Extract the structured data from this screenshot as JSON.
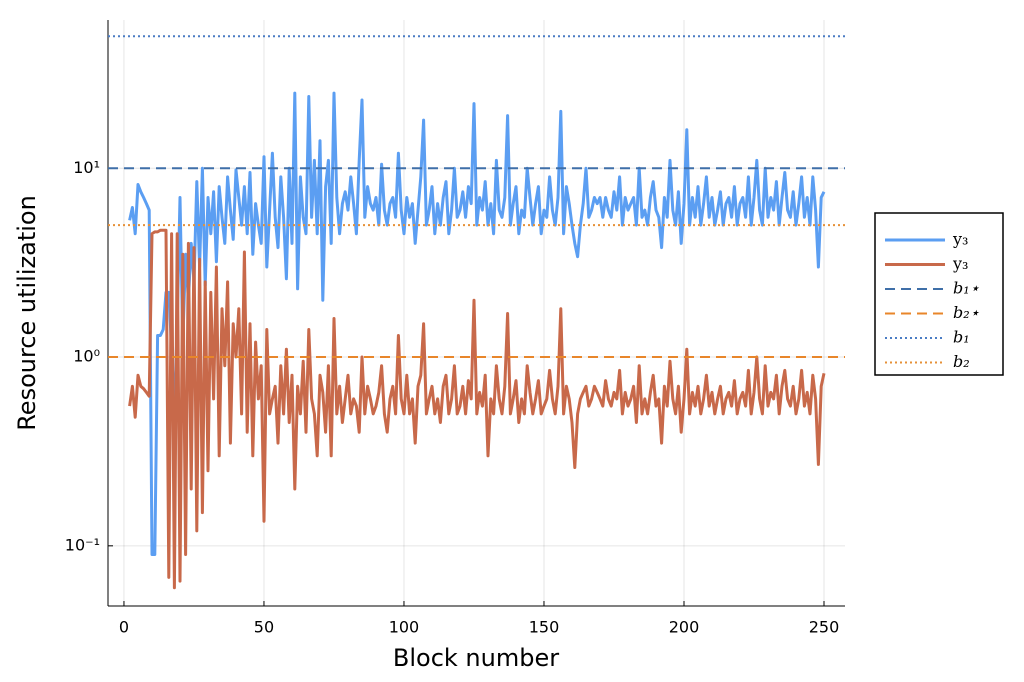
{
  "chart_data": {
    "type": "line",
    "xlabel": "Block number",
    "ylabel": "Resource utilization",
    "xlim": [
      -5.7,
      257.5
    ],
    "ylim": [
      0.048,
      61
    ],
    "log_y": true,
    "grid": true,
    "legend": "right",
    "xticks": [
      0,
      50,
      100,
      150,
      200,
      250
    ],
    "yticks": [
      {
        "value": 0.1,
        "label": "10⁻¹"
      },
      {
        "value": 1,
        "label": "10⁰"
      },
      {
        "value": 10,
        "label": "10¹"
      }
    ],
    "x": [
      2,
      3,
      4,
      5,
      6,
      7,
      8,
      9,
      10,
      11,
      12,
      13,
      14,
      15,
      16,
      17,
      18,
      19,
      20,
      21,
      22,
      23,
      24,
      25,
      26,
      27,
      28,
      29,
      30,
      31,
      32,
      33,
      34,
      35,
      36,
      37,
      38,
      39,
      40,
      41,
      42,
      43,
      44,
      45,
      46,
      47,
      48,
      49,
      50,
      51,
      52,
      53,
      54,
      55,
      56,
      57,
      58,
      59,
      60,
      61,
      62,
      63,
      64,
      65,
      66,
      67,
      68,
      69,
      70,
      71,
      72,
      73,
      74,
      75,
      76,
      77,
      78,
      79,
      80,
      81,
      82,
      83,
      84,
      85,
      86,
      87,
      88,
      89,
      90,
      91,
      92,
      93,
      94,
      95,
      96,
      97,
      98,
      99,
      100,
      101,
      102,
      103,
      104,
      105,
      106,
      107,
      108,
      109,
      110,
      111,
      112,
      113,
      114,
      115,
      116,
      117,
      118,
      119,
      120,
      121,
      122,
      123,
      124,
      125,
      126,
      127,
      128,
      129,
      130,
      131,
      132,
      133,
      134,
      135,
      136,
      137,
      138,
      139,
      140,
      141,
      142,
      143,
      144,
      145,
      146,
      147,
      148,
      149,
      150,
      151,
      152,
      153,
      154,
      155,
      156,
      157,
      158,
      159,
      160,
      161,
      162,
      163,
      164,
      165,
      166,
      167,
      168,
      169,
      170,
      171,
      172,
      173,
      174,
      175,
      176,
      177,
      178,
      179,
      180,
      181,
      182,
      183,
      184,
      185,
      186,
      187,
      188,
      189,
      190,
      191,
      192,
      193,
      194,
      195,
      196,
      197,
      198,
      199,
      200,
      201,
      202,
      203,
      204,
      205,
      206,
      207,
      208,
      209,
      210,
      211,
      212,
      213,
      214,
      215,
      216,
      217,
      218,
      219,
      220,
      221,
      222,
      223,
      224,
      225,
      226,
      227,
      228,
      229,
      230,
      231,
      232,
      233,
      234,
      235,
      236,
      237,
      238,
      239,
      240,
      241,
      242,
      243,
      244,
      245,
      246,
      247,
      248,
      249,
      250
    ],
    "series": [
      {
        "name": "y₃",
        "color": "#5b9ef2",
        "values": [
          5.3,
          6.2,
          4.5,
          8.2,
          7.5,
          7.0,
          6.5,
          6.0,
          0.09,
          0.09,
          1.3,
          1.3,
          1.4,
          2.2,
          2.2,
          1.1,
          0.5,
          1.5,
          7.0,
          1.2,
          3.5,
          2.0,
          4.0,
          2.5,
          8.5,
          3.0,
          10.0,
          2.4,
          7.0,
          4.5,
          7.5,
          3.2,
          8.0,
          5.5,
          4.0,
          9.0,
          6.0,
          4.2,
          9.8,
          7.0,
          5.0,
          8.0,
          4.5,
          9.5,
          3.5,
          6.5,
          5.0,
          4.0,
          11.5,
          3.0,
          6.0,
          12.0,
          5.5,
          3.8,
          9.0,
          5.5,
          2.6,
          10.0,
          4.0,
          25.0,
          2.3,
          9.0,
          5.5,
          4.5,
          24.0,
          5.5,
          11.0,
          4.5,
          14.0,
          2.0,
          8.0,
          11.0,
          4.0,
          25.0,
          7.0,
          4.5,
          6.5,
          7.5,
          6.0,
          9.0,
          6.5,
          4.5,
          11.0,
          23.0,
          5.5,
          8.0,
          6.5,
          6.0,
          7.0,
          5.0,
          10.5,
          6.0,
          5.0,
          6.5,
          7.0,
          5.5,
          12.0,
          6.0,
          4.5,
          7.0,
          5.5,
          6.5,
          4.0,
          6.0,
          9.0,
          18.0,
          5.0,
          6.0,
          8.0,
          4.5,
          6.5,
          5.0,
          7.0,
          8.5,
          4.5,
          6.0,
          10.0,
          5.5,
          6.0,
          7.5,
          5.5,
          8.0,
          6.5,
          22.0,
          5.0,
          7.0,
          6.0,
          8.5,
          5.0,
          6.5,
          4.5,
          11.0,
          6.0,
          5.5,
          7.0,
          19.0,
          5.0,
          6.5,
          8.0,
          4.5,
          6.0,
          5.5,
          10.0,
          7.0,
          5.0,
          6.5,
          8.0,
          4.5,
          6.0,
          5.5,
          9.0,
          6.0,
          5.0,
          7.0,
          20.0,
          4.5,
          8.0,
          6.5,
          5.0,
          4.0,
          3.4,
          5.0,
          6.5,
          10.0,
          5.5,
          6.0,
          7.0,
          6.5,
          7.0,
          5.5,
          7.0,
          6.0,
          5.5,
          7.5,
          6.0,
          9.0,
          5.0,
          7.0,
          6.0,
          6.5,
          7.0,
          5.0,
          10.0,
          5.5,
          6.0,
          5.0,
          7.0,
          8.5,
          6.0,
          5.5,
          3.8,
          7.0,
          5.5,
          11.0,
          6.0,
          5.0,
          7.5,
          4.0,
          6.5,
          16.0,
          5.0,
          7.0,
          5.5,
          8.0,
          5.0,
          6.5,
          9.0,
          5.5,
          7.0,
          5.0,
          6.0,
          7.5,
          5.0,
          6.5,
          7.0,
          5.5,
          8.0,
          5.0,
          6.5,
          7.0,
          5.5,
          9.0,
          5.0,
          7.0,
          11.0,
          6.0,
          5.0,
          10.0,
          5.5,
          7.0,
          6.0,
          8.5,
          5.0,
          7.0,
          9.5,
          6.0,
          5.5,
          7.5,
          5.0,
          6.5,
          9.0,
          5.5,
          7.0,
          5.0,
          9.0,
          6.0,
          3.0,
          7.0,
          7.5
        ]
      },
      {
        "name": "y₃",
        "color": "#c8694a",
        "values": [
          0.55,
          0.7,
          0.48,
          0.8,
          0.7,
          0.68,
          0.65,
          0.62,
          4.5,
          4.6,
          4.6,
          4.7,
          4.7,
          4.7,
          0.068,
          4.5,
          0.06,
          4.5,
          0.065,
          3.5,
          0.09,
          4.0,
          0.2,
          3.8,
          0.12,
          3.3,
          0.15,
          2.5,
          0.25,
          2.2,
          0.6,
          3.0,
          0.3,
          1.8,
          0.9,
          2.5,
          0.35,
          1.5,
          1.0,
          1.8,
          0.5,
          3.6,
          0.4,
          1.5,
          0.3,
          1.2,
          0.6,
          0.9,
          0.135,
          1.4,
          0.5,
          0.6,
          0.7,
          0.35,
          0.9,
          0.5,
          1.1,
          0.45,
          0.8,
          0.2,
          0.7,
          0.5,
          0.95,
          0.4,
          1.4,
          0.6,
          0.5,
          0.3,
          0.8,
          0.65,
          0.4,
          0.9,
          0.3,
          1.6,
          0.5,
          0.7,
          0.45,
          0.6,
          0.8,
          0.5,
          0.6,
          0.55,
          0.4,
          1.0,
          0.5,
          0.7,
          0.6,
          0.5,
          0.55,
          0.65,
          0.9,
          0.5,
          0.4,
          0.6,
          0.7,
          0.5,
          1.3,
          0.6,
          0.5,
          0.8,
          0.5,
          0.6,
          0.35,
          0.7,
          0.8,
          1.5,
          0.5,
          0.6,
          0.7,
          0.5,
          0.6,
          0.45,
          0.7,
          0.8,
          0.5,
          0.6,
          0.9,
          0.5,
          0.55,
          0.7,
          0.5,
          0.75,
          0.6,
          2.0,
          0.5,
          0.65,
          0.55,
          0.8,
          0.3,
          0.6,
          0.5,
          0.9,
          0.6,
          0.5,
          0.7,
          1.7,
          0.5,
          0.6,
          0.75,
          0.45,
          0.6,
          0.5,
          0.9,
          0.65,
          0.5,
          0.6,
          0.75,
          0.5,
          0.55,
          0.6,
          0.85,
          0.6,
          0.5,
          0.7,
          1.8,
          0.5,
          0.7,
          0.6,
          0.45,
          0.26,
          0.5,
          0.6,
          0.65,
          0.7,
          0.55,
          0.6,
          0.7,
          0.65,
          0.6,
          0.55,
          0.75,
          0.6,
          0.55,
          0.65,
          0.6,
          0.85,
          0.5,
          0.65,
          0.55,
          0.6,
          0.7,
          0.45,
          0.9,
          0.5,
          0.6,
          0.5,
          0.65,
          0.8,
          0.55,
          0.6,
          0.35,
          0.7,
          0.55,
          0.95,
          0.6,
          0.5,
          0.7,
          0.4,
          0.6,
          1.1,
          0.5,
          0.65,
          0.55,
          0.7,
          0.5,
          0.6,
          0.8,
          0.55,
          0.65,
          0.5,
          0.6,
          0.7,
          0.5,
          0.6,
          0.65,
          0.55,
          0.75,
          0.5,
          0.6,
          0.65,
          0.55,
          0.85,
          0.5,
          0.65,
          1.0,
          0.6,
          0.5,
          0.9,
          0.55,
          0.65,
          0.6,
          0.8,
          0.5,
          0.7,
          0.85,
          0.6,
          0.55,
          0.7,
          0.5,
          0.6,
          0.85,
          0.55,
          0.65,
          0.5,
          0.8,
          0.6,
          0.27,
          0.7,
          0.82
        ]
      }
    ],
    "hlines": [
      {
        "name": "b₁⋆",
        "color": "#3f6fa8",
        "style": "dashed",
        "value": 10
      },
      {
        "name": "b₂⋆",
        "color": "#e8862a",
        "style": "dashed",
        "value": 1
      },
      {
        "name": "b₁",
        "color": "#4a7cc4",
        "style": "dotted",
        "value": 50
      },
      {
        "name": "b₂",
        "color": "#e69138",
        "style": "dotted",
        "value": 5
      }
    ]
  }
}
